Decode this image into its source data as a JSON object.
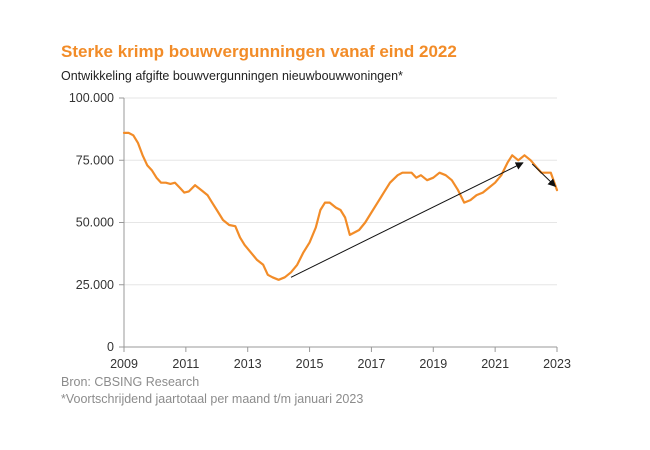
{
  "colors": {
    "accent": "#f28c28",
    "text": "#222222",
    "muted": "#8c8c8c",
    "grid": "#e6e6e6",
    "axis": "#999999",
    "arrow": "#111111"
  },
  "source": "Bron: CBSING Research",
  "footnote": "*Voortschrijdend jaartotaal per maand t/m januari 2023",
  "chart_data": {
    "type": "line",
    "title": "Sterke krimp bouwvergunningen vanaf eind 2022",
    "subtitle": "Ontwikkeling afgifte bouwvergunningen nieuwbouwwoningen*",
    "xlabel": "",
    "ylabel": "",
    "xlim": [
      2009,
      2023
    ],
    "ylim": [
      0,
      100000
    ],
    "grid": true,
    "x_ticks": [
      2009,
      2011,
      2013,
      2015,
      2017,
      2019,
      2021,
      2023
    ],
    "y_ticks": [
      {
        "value": 0,
        "label": "0"
      },
      {
        "value": 25000,
        "label": "25.000"
      },
      {
        "value": 50000,
        "label": "50.000"
      },
      {
        "value": 75000,
        "label": "75.000"
      },
      {
        "value": 100000,
        "label": "100.000"
      }
    ],
    "series": [
      {
        "x": [
          2009.0,
          2009.15,
          2009.3,
          2009.45,
          2009.6,
          2009.75,
          2009.9,
          2010.05,
          2010.2,
          2010.35,
          2010.5,
          2010.65,
          2010.8,
          2010.95,
          2011.1,
          2011.3,
          2011.5,
          2011.7,
          2011.85,
          2012.0,
          2012.2,
          2012.4,
          2012.6,
          2012.75,
          2012.9,
          2013.1,
          2013.3,
          2013.5,
          2013.65,
          2013.8,
          2014.0,
          2014.2,
          2014.4,
          2014.6,
          2014.8,
          2015.0,
          2015.2,
          2015.35,
          2015.5,
          2015.65,
          2015.85,
          2016.0,
          2016.15,
          2016.3,
          2016.45,
          2016.6,
          2016.8,
          2017.0,
          2017.2,
          2017.4,
          2017.6,
          2017.85,
          2018.0,
          2018.15,
          2018.3,
          2018.45,
          2018.6,
          2018.8,
          2019.0,
          2019.2,
          2019.4,
          2019.6,
          2019.8,
          2020.0,
          2020.2,
          2020.4,
          2020.6,
          2020.8,
          2021.0,
          2021.2,
          2021.4,
          2021.55,
          2021.75,
          2021.95,
          2022.15,
          2022.35,
          2022.5,
          2022.65,
          2022.8,
          2023.0
        ],
        "y": [
          86000,
          86000,
          85000,
          82000,
          77000,
          73000,
          71000,
          68000,
          66000,
          66000,
          65500,
          66000,
          64000,
          62000,
          62500,
          65000,
          63000,
          61000,
          58000,
          55000,
          51000,
          49000,
          48500,
          44000,
          41000,
          38000,
          35000,
          33000,
          29000,
          28000,
          27000,
          28000,
          30000,
          33000,
          38000,
          42000,
          48000,
          55000,
          58000,
          58000,
          56000,
          55000,
          52000,
          45000,
          46000,
          47000,
          50000,
          54000,
          58000,
          62000,
          66000,
          69000,
          70000,
          70000,
          70000,
          68000,
          69000,
          67000,
          68000,
          70000,
          69000,
          67000,
          63000,
          58000,
          59000,
          61000,
          62000,
          64000,
          66000,
          69000,
          74000,
          77000,
          75000,
          77000,
          75000,
          72000,
          70000,
          70000,
          70000,
          63000
        ]
      }
    ],
    "annotations": [
      {
        "type": "arrow",
        "from": [
          2014.4,
          28000
        ],
        "to": [
          2021.9,
          74000
        ]
      },
      {
        "type": "arrow",
        "from": [
          2022.2,
          73500
        ],
        "to": [
          2022.95,
          64500
        ]
      }
    ]
  }
}
